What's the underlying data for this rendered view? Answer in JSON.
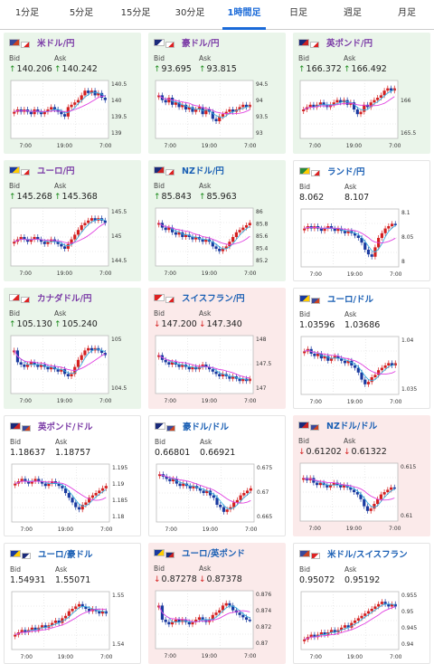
{
  "tabs": [
    "1分足",
    "5分足",
    "15分足",
    "30分足",
    "1時間足",
    "日足",
    "週足",
    "月足"
  ],
  "active_tab": 4,
  "bid_label": "Bid",
  "ask_label": "Ask",
  "colors": {
    "up": "#1a8a1a",
    "down": "#d42020",
    "ma1": "#e040e0",
    "ma2": "#3ab0e0",
    "candle_up": "#d42020",
    "candle_dn": "#1a3aa0"
  },
  "cards": [
    {
      "name": "米ドル/円",
      "state": "up",
      "bid": "140.206",
      "ask": "140.242",
      "arrow": "up",
      "flags": [
        "us",
        "jp"
      ],
      "yticks": [
        "140.5",
        "140",
        "139.5",
        "139"
      ],
      "xticks": [
        "7:00",
        "19:00",
        "7:00"
      ],
      "shape": [
        0.55,
        0.5,
        0.55,
        0.5,
        0.55,
        0.6,
        0.5,
        0.55,
        0.6,
        0.55,
        0.5,
        0.45,
        0.5,
        0.55,
        0.6,
        0.65,
        0.45,
        0.4,
        0.35,
        0.3,
        0.2,
        0.1,
        0.15,
        0.1,
        0.2,
        0.15,
        0.25,
        0.3
      ]
    },
    {
      "name": "豪ドル/円",
      "state": "up",
      "bid": "93.695",
      "ask": "93.815",
      "arrow": "up",
      "flags": [
        "au",
        "jp"
      ],
      "yticks": [
        "94.5",
        "94",
        "93.5",
        "93"
      ],
      "xticks": [
        "7:00",
        "19:00",
        "7:00"
      ],
      "shape": [
        0.2,
        0.3,
        0.35,
        0.25,
        0.4,
        0.35,
        0.45,
        0.4,
        0.5,
        0.45,
        0.55,
        0.5,
        0.45,
        0.6,
        0.5,
        0.55,
        0.7,
        0.75,
        0.65,
        0.6,
        0.55,
        0.5,
        0.55,
        0.5,
        0.45,
        0.4,
        0.45,
        0.4
      ]
    },
    {
      "name": "英ポンド/円",
      "state": "up",
      "bid": "166.372",
      "ask": "166.492",
      "arrow": "up",
      "flags": [
        "gb",
        "jp"
      ],
      "yticks": [
        "",
        "166",
        "",
        "165.5"
      ],
      "xticks": [
        "7:00",
        "19:00",
        "7:00"
      ],
      "shape": [
        0.5,
        0.45,
        0.4,
        0.45,
        0.4,
        0.35,
        0.4,
        0.45,
        0.4,
        0.35,
        0.3,
        0.35,
        0.3,
        0.4,
        0.35,
        0.5,
        0.6,
        0.55,
        0.4,
        0.45,
        0.35,
        0.3,
        0.25,
        0.2,
        0.1,
        0.05,
        0.1,
        0.05
      ]
    },
    {
      "name": "ユーロ/円",
      "state": "up",
      "bid": "145.268",
      "ask": "145.368",
      "arrow": "up",
      "flags": [
        "eu",
        "jp"
      ],
      "yticks": [
        "145.5",
        "145",
        "144.5"
      ],
      "xticks": [
        "7:00",
        "19:00",
        "7:00"
      ],
      "shape": [
        0.6,
        0.55,
        0.5,
        0.55,
        0.6,
        0.55,
        0.5,
        0.55,
        0.6,
        0.65,
        0.6,
        0.55,
        0.6,
        0.65,
        0.7,
        0.75,
        0.65,
        0.55,
        0.45,
        0.35,
        0.25,
        0.2,
        0.15,
        0.1,
        0.15,
        0.1,
        0.15,
        0.2
      ]
    },
    {
      "name": "NZドル/円",
      "state": "up",
      "bid": "85.843",
      "ask": "85.963",
      "arrow": "up",
      "flags": [
        "nz",
        "jp"
      ],
      "yticks": [
        "86",
        "85.8",
        "85.6",
        "85.4",
        "85.2"
      ],
      "xticks": [
        "7:00",
        "19:00",
        "7:00"
      ],
      "shape": [
        0.2,
        0.3,
        0.35,
        0.3,
        0.4,
        0.45,
        0.4,
        0.5,
        0.45,
        0.5,
        0.55,
        0.5,
        0.55,
        0.6,
        0.55,
        0.6,
        0.7,
        0.75,
        0.8,
        0.75,
        0.7,
        0.6,
        0.5,
        0.4,
        0.35,
        0.3,
        0.25,
        0.2
      ]
    },
    {
      "name": "ランド/円",
      "state": "flat",
      "bid": "8.062",
      "ask": "8.107",
      "arrow": "none",
      "flags": [
        "za",
        "jp"
      ],
      "yticks": [
        "8.1",
        "8.05",
        "8"
      ],
      "xticks": [
        "7:00",
        "19:00",
        "7:00"
      ],
      "shape": [
        0.3,
        0.25,
        0.3,
        0.25,
        0.3,
        0.35,
        0.3,
        0.25,
        0.3,
        0.35,
        0.3,
        0.35,
        0.4,
        0.35,
        0.4,
        0.45,
        0.5,
        0.6,
        0.75,
        0.85,
        0.9,
        0.7,
        0.5,
        0.4,
        0.3,
        0.25,
        0.2,
        0.2
      ]
    },
    {
      "name": "カナダドル/円",
      "state": "up",
      "bid": "105.130",
      "ask": "105.240",
      "arrow": "up",
      "flags": [
        "ca",
        "jp"
      ],
      "yticks": [
        "105",
        "104.5"
      ],
      "xticks": [
        "7:00",
        "19:00",
        "7:00"
      ],
      "shape": [
        0.2,
        0.45,
        0.5,
        0.55,
        0.5,
        0.45,
        0.5,
        0.55,
        0.5,
        0.55,
        0.6,
        0.55,
        0.6,
        0.65,
        0.6,
        0.7,
        0.75,
        0.7,
        0.55,
        0.4,
        0.3,
        0.2,
        0.15,
        0.2,
        0.15,
        0.2,
        0.25,
        0.3
      ]
    },
    {
      "name": "スイスフラン/円",
      "state": "down",
      "bid": "147.200",
      "ask": "147.340",
      "arrow": "dn",
      "flags": [
        "ch",
        "jp"
      ],
      "yticks": [
        "148",
        "147.5",
        "147"
      ],
      "xticks": [
        "7:00",
        "19:00",
        "7:00"
      ],
      "shape": [
        0.3,
        0.4,
        0.45,
        0.5,
        0.45,
        0.5,
        0.55,
        0.5,
        0.55,
        0.6,
        0.55,
        0.6,
        0.55,
        0.5,
        0.55,
        0.6,
        0.65,
        0.7,
        0.75,
        0.7,
        0.75,
        0.8,
        0.75,
        0.8,
        0.85,
        0.8,
        0.85,
        0.8
      ]
    },
    {
      "name": "ユーロ/ドル",
      "state": "flat",
      "bid": "1.03596",
      "ask": "1.03686",
      "arrow": "none",
      "flags": [
        "eu",
        "us"
      ],
      "yticks": [
        "1.04",
        "",
        "1.035"
      ],
      "xticks": [
        "7:00",
        "19:00",
        "7:00"
      ],
      "shape": [
        0.2,
        0.15,
        0.25,
        0.3,
        0.25,
        0.35,
        0.3,
        0.4,
        0.35,
        0.3,
        0.35,
        0.4,
        0.45,
        0.4,
        0.5,
        0.55,
        0.65,
        0.8,
        0.9,
        0.85,
        0.75,
        0.7,
        0.6,
        0.55,
        0.5,
        0.45,
        0.5,
        0.45
      ]
    },
    {
      "name": "英ポンド/ドル",
      "state": "flat",
      "bid": "1.18637",
      "ask": "1.18757",
      "arrow": "none",
      "flags": [
        "gb",
        "us"
      ],
      "yticks": [
        "1.195",
        "1.19",
        "1.185",
        "1.18"
      ],
      "xticks": [
        "7:00",
        "19:00",
        "7:00"
      ],
      "shape": [
        0.3,
        0.25,
        0.2,
        0.25,
        0.3,
        0.25,
        0.2,
        0.25,
        0.3,
        0.35,
        0.3,
        0.25,
        0.3,
        0.35,
        0.4,
        0.5,
        0.6,
        0.7,
        0.8,
        0.85,
        0.75,
        0.7,
        0.6,
        0.55,
        0.5,
        0.45,
        0.4,
        0.35
      ]
    },
    {
      "name": "豪ドル/ドル",
      "state": "flat",
      "bid": "0.66801",
      "ask": "0.66921",
      "arrow": "none",
      "flags": [
        "au",
        "us"
      ],
      "yticks": [
        "0.675",
        "0.67",
        "0.665"
      ],
      "xticks": [
        "7:00",
        "19:00",
        "7:00"
      ],
      "shape": [
        0.1,
        0.15,
        0.2,
        0.25,
        0.2,
        0.3,
        0.35,
        0.3,
        0.35,
        0.4,
        0.35,
        0.4,
        0.45,
        0.5,
        0.45,
        0.55,
        0.6,
        0.75,
        0.8,
        0.9,
        0.85,
        0.8,
        0.7,
        0.65,
        0.55,
        0.5,
        0.45,
        0.4
      ]
    },
    {
      "name": "NZドル/ドル",
      "state": "down",
      "bid": "0.61202",
      "ask": "0.61322",
      "arrow": "dn",
      "flags": [
        "nz",
        "us"
      ],
      "yticks": [
        "0.615",
        "0.61"
      ],
      "xticks": [
        "7:00",
        "19:00",
        "7:00"
      ],
      "shape": [
        0.2,
        0.25,
        0.2,
        0.3,
        0.35,
        0.3,
        0.35,
        0.4,
        0.35,
        0.3,
        0.35,
        0.4,
        0.35,
        0.4,
        0.45,
        0.5,
        0.55,
        0.65,
        0.8,
        0.9,
        0.85,
        0.75,
        0.65,
        0.55,
        0.5,
        0.45,
        0.4,
        0.4
      ]
    },
    {
      "name": "ユーロ/豪ドル",
      "state": "flat",
      "bid": "1.54931",
      "ask": "1.55071",
      "arrow": "none",
      "flags": [
        "eu",
        "au"
      ],
      "yticks": [
        "1.55",
        "1.54"
      ],
      "xticks": [
        "7:00",
        "19:00",
        "7:00"
      ],
      "shape": [
        0.8,
        0.75,
        0.7,
        0.75,
        0.7,
        0.65,
        0.7,
        0.65,
        0.6,
        0.65,
        0.6,
        0.55,
        0.5,
        0.55,
        0.45,
        0.4,
        0.3,
        0.25,
        0.2,
        0.15,
        0.2,
        0.25,
        0.3,
        0.25,
        0.3,
        0.35,
        0.3,
        0.35
      ]
    },
    {
      "name": "ユーロ/英ポンド",
      "state": "down",
      "bid": "0.87278",
      "ask": "0.87378",
      "arrow": "dn",
      "flags": [
        "eu",
        "gb"
      ],
      "yticks": [
        "0.876",
        "0.874",
        "0.872",
        "0.87"
      ],
      "xticks": [
        "7:00",
        "19:00",
        "7:00"
      ],
      "shape": [
        0.2,
        0.5,
        0.55,
        0.6,
        0.55,
        0.5,
        0.55,
        0.5,
        0.55,
        0.6,
        0.55,
        0.5,
        0.45,
        0.5,
        0.55,
        0.5,
        0.4,
        0.35,
        0.3,
        0.2,
        0.15,
        0.2,
        0.3,
        0.35,
        0.4,
        0.45,
        0.5,
        0.5
      ]
    },
    {
      "name": "米ドル/スイスフラン",
      "state": "flat",
      "bid": "0.95072",
      "ask": "0.95192",
      "arrow": "none",
      "flags": [
        "us",
        "ch"
      ],
      "yticks": [
        "0.955",
        "0.95",
        "0.945",
        "0.94"
      ],
      "xticks": [
        "7:00",
        "19:00",
        "7:00"
      ],
      "shape": [
        0.9,
        0.85,
        0.8,
        0.85,
        0.8,
        0.75,
        0.8,
        0.75,
        0.7,
        0.75,
        0.7,
        0.65,
        0.6,
        0.65,
        0.55,
        0.5,
        0.45,
        0.4,
        0.35,
        0.3,
        0.25,
        0.2,
        0.15,
        0.1,
        0.15,
        0.2,
        0.15,
        0.2
      ]
    }
  ]
}
